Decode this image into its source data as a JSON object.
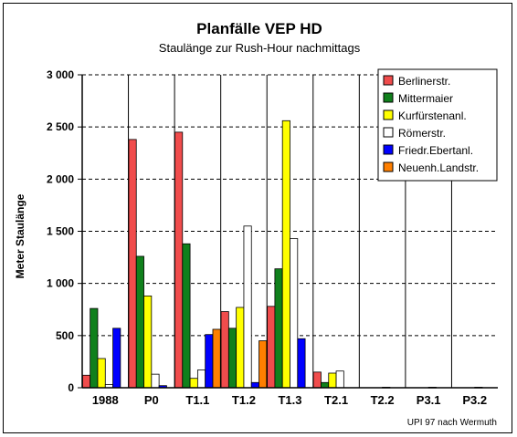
{
  "chart_data": {
    "type": "bar",
    "title": "Planfälle VEP HD",
    "subtitle": "Staulänge zur Rush-Hour nachmittags",
    "ylabel": "Meter Staulänge",
    "xlabel": "",
    "ylim": [
      0,
      3000
    ],
    "yticks": [
      0,
      500,
      1000,
      1500,
      2000,
      2500,
      3000
    ],
    "ytick_labels": [
      "0",
      "500",
      "1 000",
      "1 500",
      "2 000",
      "2 500",
      "3 000"
    ],
    "grid": "horizontal-dashed",
    "legend_position": "top-right",
    "categories": [
      "1988",
      "P0",
      "T1.1",
      "T1.2",
      "T1.3",
      "T2.1",
      "T2.2",
      "P3.1",
      "P3.2"
    ],
    "series": [
      {
        "name": "Berlinerstr.",
        "color": "#f04c4c",
        "values": [
          120,
          2380,
          2450,
          730,
          780,
          150,
          0,
          0,
          0
        ]
      },
      {
        "name": "Mittermaier",
        "color": "#10801c",
        "values": [
          760,
          1260,
          1380,
          570,
          1140,
          50,
          0,
          0,
          0
        ]
      },
      {
        "name": "Kurfürstenanl.",
        "color": "#ffff00",
        "values": [
          280,
          880,
          90,
          770,
          2560,
          140,
          0,
          0,
          0
        ]
      },
      {
        "name": "Römerstr.",
        "color": "#ffffff",
        "values": [
          30,
          130,
          170,
          1550,
          1430,
          160,
          5,
          5,
          5
        ]
      },
      {
        "name": "Friedr.Ebertanl.",
        "color": "#0000ff",
        "values": [
          570,
          20,
          510,
          50,
          470,
          0,
          0,
          0,
          0
        ]
      },
      {
        "name": "Neuenh.Landstr.",
        "color": "#ff7f00",
        "values": [
          0,
          0,
          560,
          450,
          0,
          0,
          0,
          0,
          0
        ]
      }
    ],
    "credit": "UPI 97 nach Wermuth"
  }
}
